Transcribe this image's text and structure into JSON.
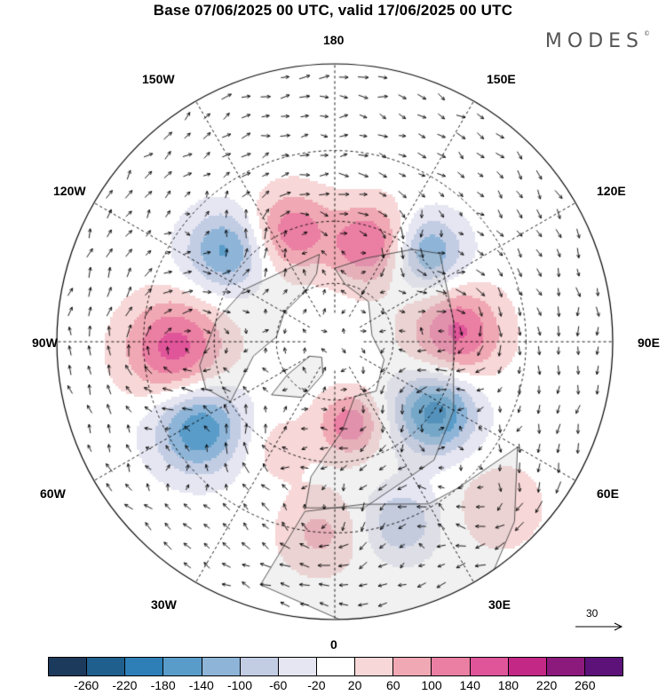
{
  "title": "Base 07/06/2025 00 UTC, valid 17/06/2025 00 UTC",
  "brand": "MODES",
  "brand_mark": "©",
  "longitude_labels": {
    "top": "180",
    "bottom": "0",
    "left": "90W",
    "right": "90E",
    "upper_left": "150W",
    "upper_right": "150E",
    "mid_upper_left": "120W",
    "mid_upper_right": "120E",
    "mid_lower_left": "60W",
    "mid_lower_right": "60E",
    "lower_left": "30W",
    "lower_right": "30E"
  },
  "reference_vector": "30",
  "colorbar": {
    "colors": [
      "#1b3a5c",
      "#1f5f8e",
      "#2e7fb7",
      "#5a9cc9",
      "#8eb5d8",
      "#c2cde4",
      "#e6e6f2",
      "#ffffff",
      "#f7d7d7",
      "#f0a9b4",
      "#eb7fa3",
      "#e0559a",
      "#c42886",
      "#8c1a7d",
      "#5c1278"
    ],
    "ticks": [
      "-260",
      "-220",
      "-180",
      "-140",
      "-100",
      "-60",
      "-20",
      "20",
      "60",
      "100",
      "140",
      "180",
      "220",
      "260"
    ]
  },
  "anomaly_centers": [
    {
      "lon": 160,
      "lat": 55,
      "value": 150,
      "r": 45
    },
    {
      "lon": -158,
      "lat": 50,
      "value": 130,
      "r": 45
    },
    {
      "lon": -130,
      "lat": 43,
      "value": -150,
      "r": 45
    },
    {
      "lon": 135,
      "lat": 48,
      "value": -150,
      "r": 42
    },
    {
      "lon": 95,
      "lat": 50,
      "value": 150,
      "r": 50
    },
    {
      "lon": -88,
      "lat": 38,
      "value": 160,
      "r": 55
    },
    {
      "lon": -58,
      "lat": 38,
      "value": -180,
      "r": 50
    },
    {
      "lon": 55,
      "lat": 50,
      "value": -200,
      "r": 45
    },
    {
      "lon": 10,
      "lat": 62,
      "value": 130,
      "r": 35
    },
    {
      "lon": 20,
      "lat": 30,
      "value": -100,
      "r": 40
    },
    {
      "lon": -5,
      "lat": 30,
      "value": 70,
      "r": 45
    },
    {
      "lon": 45,
      "lat": 20,
      "value": 50,
      "r": 50
    },
    {
      "lon": -30,
      "lat": 50,
      "value": 40,
      "r": 40
    }
  ]
}
